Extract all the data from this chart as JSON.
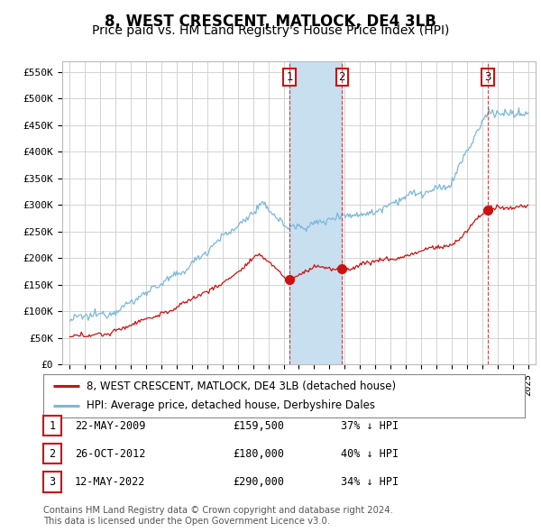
{
  "title": "8, WEST CRESCENT, MATLOCK, DE4 3LB",
  "subtitle": "Price paid vs. HM Land Registry's House Price Index (HPI)",
  "title_fontsize": 12,
  "subtitle_fontsize": 10,
  "ylabel_ticks": [
    "£0",
    "£50K",
    "£100K",
    "£150K",
    "£200K",
    "£250K",
    "£300K",
    "£350K",
    "£400K",
    "£450K",
    "£500K",
    "£550K"
  ],
  "ylabel_values": [
    0,
    50000,
    100000,
    150000,
    200000,
    250000,
    300000,
    350000,
    400000,
    450000,
    500000,
    550000
  ],
  "xlim": [
    1994.5,
    2025.5
  ],
  "ylim": [
    0,
    570000
  ],
  "hpi_color": "#7ab8d9",
  "price_color": "#cc1111",
  "background_color": "#ffffff",
  "grid_color": "#cccccc",
  "sale_dates": [
    2009.39,
    2012.82,
    2022.37
  ],
  "sale_prices": [
    159500,
    180000,
    290000
  ],
  "sale_labels": [
    "1",
    "2",
    "3"
  ],
  "vline_color": "#cc1111",
  "span_color": "#c8dff0",
  "legend_items": [
    {
      "label": "8, WEST CRESCENT, MATLOCK, DE4 3LB (detached house)",
      "color": "#cc1111"
    },
    {
      "label": "HPI: Average price, detached house, Derbyshire Dales",
      "color": "#7ab8d9"
    }
  ],
  "table_rows": [
    {
      "num": "1",
      "date": "22-MAY-2009",
      "price": "£159,500",
      "pct": "37% ↓ HPI"
    },
    {
      "num": "2",
      "date": "26-OCT-2012",
      "price": "£180,000",
      "pct": "40% ↓ HPI"
    },
    {
      "num": "3",
      "date": "12-MAY-2022",
      "price": "£290,000",
      "pct": "34% ↓ HPI"
    }
  ],
  "footer": "Contains HM Land Registry data © Crown copyright and database right 2024.\nThis data is licensed under the Open Government Licence v3.0.",
  "xtick_years": [
    1995,
    1996,
    1997,
    1998,
    1999,
    2000,
    2001,
    2002,
    2003,
    2004,
    2005,
    2006,
    2007,
    2008,
    2009,
    2010,
    2011,
    2012,
    2013,
    2014,
    2015,
    2016,
    2017,
    2018,
    2019,
    2020,
    2021,
    2022,
    2023,
    2024,
    2025
  ]
}
